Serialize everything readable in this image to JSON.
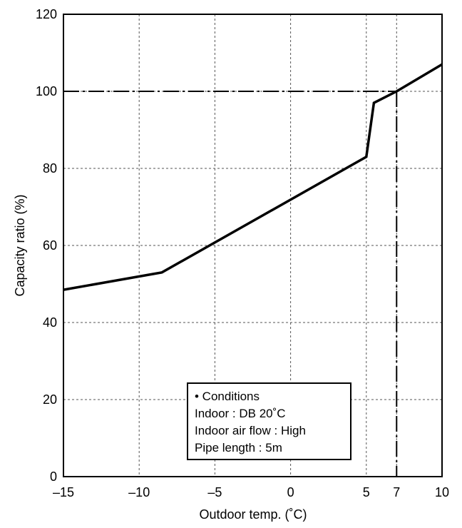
{
  "chart_data": {
    "type": "line",
    "xlabel": "Outdoor temp. (˚C)",
    "ylabel": "Capacity ratio (%)",
    "xlim": [
      -15,
      10
    ],
    "ylim": [
      0,
      120
    ],
    "x_ticks": [
      -15,
      -10,
      -5,
      0,
      5,
      7,
      10
    ],
    "x_tick_labels": [
      "–15",
      "–10",
      "–5",
      "0",
      "5",
      "7",
      "10"
    ],
    "x_grid": [
      -15,
      -10,
      -5,
      0,
      5,
      7,
      10
    ],
    "y_ticks": [
      0,
      20,
      40,
      60,
      80,
      100,
      120
    ],
    "y_tick_labels": [
      "0",
      "20",
      "40",
      "60",
      "80",
      "100",
      "120"
    ],
    "grid": true,
    "series": [
      {
        "style": "solid",
        "points": [
          [
            -15,
            48.5
          ],
          [
            -8.5,
            53
          ],
          [
            5,
            83
          ],
          [
            5.5,
            97
          ],
          [
            7,
            100
          ],
          [
            10,
            107
          ]
        ]
      }
    ],
    "reference_lines": [
      {
        "style": "dash-dot",
        "points": [
          [
            -15,
            100
          ],
          [
            7,
            100
          ]
        ]
      },
      {
        "style": "dash-dot",
        "points": [
          [
            7,
            100
          ],
          [
            7,
            0
          ]
        ]
      }
    ],
    "annotation": {
      "lines": [
        "• Conditions",
        "Indoor : DB 20˚C",
        "Indoor air flow : High",
        "Pipe length : 5m"
      ]
    }
  }
}
